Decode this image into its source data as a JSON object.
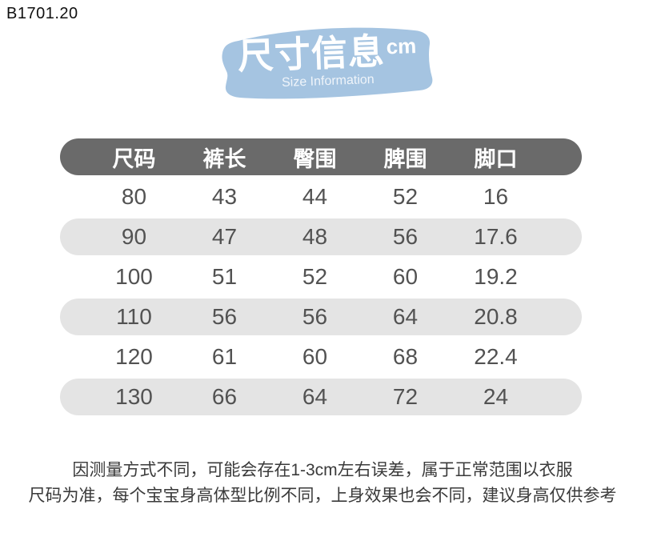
{
  "product_code": "B1701.20",
  "banner": {
    "title": "尺寸信息",
    "unit": "cm",
    "subtitle": "Size Information",
    "bg_color": "#a5c4e1"
  },
  "table_style": {
    "header_bg": "#6a6a6a",
    "stripe_bg": "#e4e4e4"
  },
  "chart_data": {
    "type": "table",
    "title": "尺寸信息 cm (Size Information)",
    "columns": [
      "尺码",
      "裤长",
      "臀围",
      "脾围",
      "脚口"
    ],
    "rows": [
      [
        80,
        43,
        44,
        52,
        16
      ],
      [
        90,
        47,
        48,
        56,
        17.6
      ],
      [
        100,
        51,
        52,
        60,
        19.2
      ],
      [
        110,
        56,
        56,
        64,
        20.8
      ],
      [
        120,
        61,
        60,
        68,
        22.4
      ],
      [
        130,
        66,
        64,
        72,
        24
      ]
    ]
  },
  "footnote": {
    "line1": "因测量方式不同，可能会存在1-3cm左右误差，属于正常范围以衣服",
    "line2": "尺码为准，每个宝宝身高体型比例不同，上身效果也会不同，建议身高仅供参考"
  }
}
